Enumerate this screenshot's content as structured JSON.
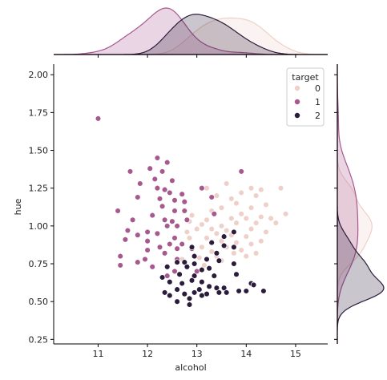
{
  "chart_data": {
    "type": "scatter",
    "title": "",
    "xlabel": "alcohol",
    "ylabel": "hue",
    "xlim": [
      10.1,
      15.65
    ],
    "ylim": [
      0.22,
      2.07
    ],
    "x_ticks": [
      "11",
      "12",
      "13",
      "14",
      "15"
    ],
    "y_ticks": [
      "0.25",
      "0.50",
      "0.75",
      "1.00",
      "1.25",
      "1.50",
      "1.75",
      "2.00"
    ],
    "grid": false,
    "legend": {
      "title": "target",
      "placement": "top-right",
      "entries": [
        "0",
        "1",
        "2"
      ]
    },
    "marginals": {
      "top": "kde",
      "right": "kde"
    },
    "colors": {
      "0": "#efd0c9",
      "1": "#a7598e",
      "2": "#2c1c3c",
      "edge": "#ffffff",
      "axis": "#000000"
    },
    "series": [
      {
        "name": "0",
        "points": [
          [
            13.6,
            1.28
          ],
          [
            13.2,
            1.25
          ],
          [
            14.1,
            1.25
          ],
          [
            13.9,
            1.22
          ],
          [
            14.3,
            1.24
          ],
          [
            14.7,
            1.25
          ],
          [
            13.4,
            1.2
          ],
          [
            13.7,
            1.18
          ],
          [
            14.2,
            1.2
          ],
          [
            13.8,
            1.15
          ],
          [
            14.1,
            1.12
          ],
          [
            13.5,
            1.12
          ],
          [
            14.4,
            1.14
          ],
          [
            13.3,
            1.1
          ],
          [
            13.9,
            1.08
          ],
          [
            14.3,
            1.06
          ],
          [
            12.9,
            1.07
          ],
          [
            13.7,
            1.05
          ],
          [
            14.0,
            1.05
          ],
          [
            13.2,
            1.04
          ],
          [
            14.5,
            1.05
          ],
          [
            12.85,
            1.03
          ],
          [
            13.1,
            1.01
          ],
          [
            13.5,
            1.0
          ],
          [
            13.8,
            1.02
          ],
          [
            14.2,
            1.02
          ],
          [
            14.6,
            1.02
          ],
          [
            13.0,
            0.98
          ],
          [
            13.3,
            0.98
          ],
          [
            13.6,
            0.97
          ],
          [
            14.1,
            0.98
          ],
          [
            14.4,
            0.96
          ],
          [
            12.8,
            0.96
          ],
          [
            13.4,
            0.95
          ],
          [
            13.7,
            0.94
          ],
          [
            14.0,
            0.93
          ],
          [
            14.8,
            1.08
          ],
          [
            12.85,
            0.92
          ],
          [
            13.2,
            0.92
          ],
          [
            13.5,
            0.9
          ],
          [
            14.3,
            0.9
          ],
          [
            13.8,
            0.89
          ],
          [
            13.1,
            0.86
          ],
          [
            13.6,
            0.86
          ],
          [
            14.1,
            0.88
          ],
          [
            13.9,
            0.84
          ],
          [
            13.3,
            0.83
          ],
          [
            14.2,
            0.82
          ],
          [
            13.4,
            0.8
          ],
          [
            13.75,
            0.82
          ],
          [
            14.0,
            0.8
          ],
          [
            12.7,
            0.78
          ],
          [
            13.05,
            0.79
          ],
          [
            13.5,
            0.77
          ],
          [
            13.15,
            0.74
          ]
        ]
      },
      {
        "name": "1",
        "points": [
          [
            11.0,
            1.71
          ],
          [
            12.2,
            1.45
          ],
          [
            12.4,
            1.42
          ],
          [
            12.05,
            1.38
          ],
          [
            11.65,
            1.36
          ],
          [
            12.3,
            1.36
          ],
          [
            13.9,
            1.36
          ],
          [
            12.15,
            1.31
          ],
          [
            12.5,
            1.3
          ],
          [
            11.85,
            1.28
          ],
          [
            12.2,
            1.25
          ],
          [
            12.35,
            1.24
          ],
          [
            13.1,
            1.25
          ],
          [
            12.45,
            1.22
          ],
          [
            12.7,
            1.21
          ],
          [
            11.8,
            1.19
          ],
          [
            12.25,
            1.18
          ],
          [
            12.55,
            1.17
          ],
          [
            12.75,
            1.16
          ],
          [
            12.3,
            1.13
          ],
          [
            13.3,
            1.19
          ],
          [
            11.4,
            1.1
          ],
          [
            12.55,
            1.1
          ],
          [
            12.75,
            1.1
          ],
          [
            12.1,
            1.07
          ],
          [
            13.35,
            1.08
          ],
          [
            12.35,
            1.04
          ],
          [
            12.5,
            1.03
          ],
          [
            11.7,
            1.04
          ],
          [
            12.8,
            1.04
          ],
          [
            11.6,
            0.97
          ],
          [
            12.0,
            0.96
          ],
          [
            12.4,
            1.0
          ],
          [
            12.6,
            1.0
          ],
          [
            12.2,
            0.95
          ],
          [
            11.8,
            0.94
          ],
          [
            12.55,
            0.92
          ],
          [
            11.55,
            0.91
          ],
          [
            12.0,
            0.9
          ],
          [
            12.45,
            0.88
          ],
          [
            12.7,
            0.88
          ],
          [
            12.25,
            0.86
          ],
          [
            12.0,
            0.84
          ],
          [
            12.6,
            0.85
          ],
          [
            12.9,
            0.85
          ],
          [
            12.35,
            0.82
          ],
          [
            11.95,
            0.78
          ],
          [
            12.6,
            0.78
          ],
          [
            11.45,
            0.8
          ],
          [
            11.8,
            0.76
          ],
          [
            12.1,
            0.73
          ],
          [
            11.45,
            0.74
          ],
          [
            12.55,
            0.7
          ],
          [
            12.4,
            0.67
          ],
          [
            13.0,
            0.7
          ]
        ]
      },
      {
        "name": "2",
        "points": [
          [
            13.75,
            0.96
          ],
          [
            13.55,
            0.93
          ],
          [
            13.3,
            0.89
          ],
          [
            13.55,
            0.87
          ],
          [
            12.9,
            0.86
          ],
          [
            13.75,
            0.86
          ],
          [
            13.4,
            0.82
          ],
          [
            12.95,
            0.8
          ],
          [
            13.2,
            0.78
          ],
          [
            13.45,
            0.77
          ],
          [
            12.75,
            0.76
          ],
          [
            12.6,
            0.76
          ],
          [
            12.95,
            0.75
          ],
          [
            13.25,
            0.72
          ],
          [
            13.75,
            0.75
          ],
          [
            12.8,
            0.73
          ],
          [
            12.4,
            0.73
          ],
          [
            13.1,
            0.71
          ],
          [
            12.65,
            0.68
          ],
          [
            12.95,
            0.67
          ],
          [
            13.35,
            0.67
          ],
          [
            13.8,
            0.68
          ],
          [
            12.3,
            0.66
          ],
          [
            12.9,
            0.64
          ],
          [
            13.1,
            0.63
          ],
          [
            12.45,
            0.63
          ],
          [
            12.7,
            0.62
          ],
          [
            14.1,
            0.62
          ],
          [
            14.15,
            0.61
          ],
          [
            13.25,
            0.6
          ],
          [
            13.4,
            0.59
          ],
          [
            13.55,
            0.59
          ],
          [
            13.05,
            0.58
          ],
          [
            12.6,
            0.58
          ],
          [
            13.85,
            0.57
          ],
          [
            14.0,
            0.57
          ],
          [
            12.95,
            0.56
          ],
          [
            13.45,
            0.56
          ],
          [
            12.35,
            0.56
          ],
          [
            13.6,
            0.56
          ],
          [
            12.75,
            0.55
          ],
          [
            13.2,
            0.55
          ],
          [
            14.35,
            0.57
          ],
          [
            12.45,
            0.54
          ],
          [
            13.1,
            0.54
          ],
          [
            12.85,
            0.52
          ],
          [
            12.6,
            0.5
          ],
          [
            12.85,
            0.48
          ]
        ]
      }
    ]
  }
}
